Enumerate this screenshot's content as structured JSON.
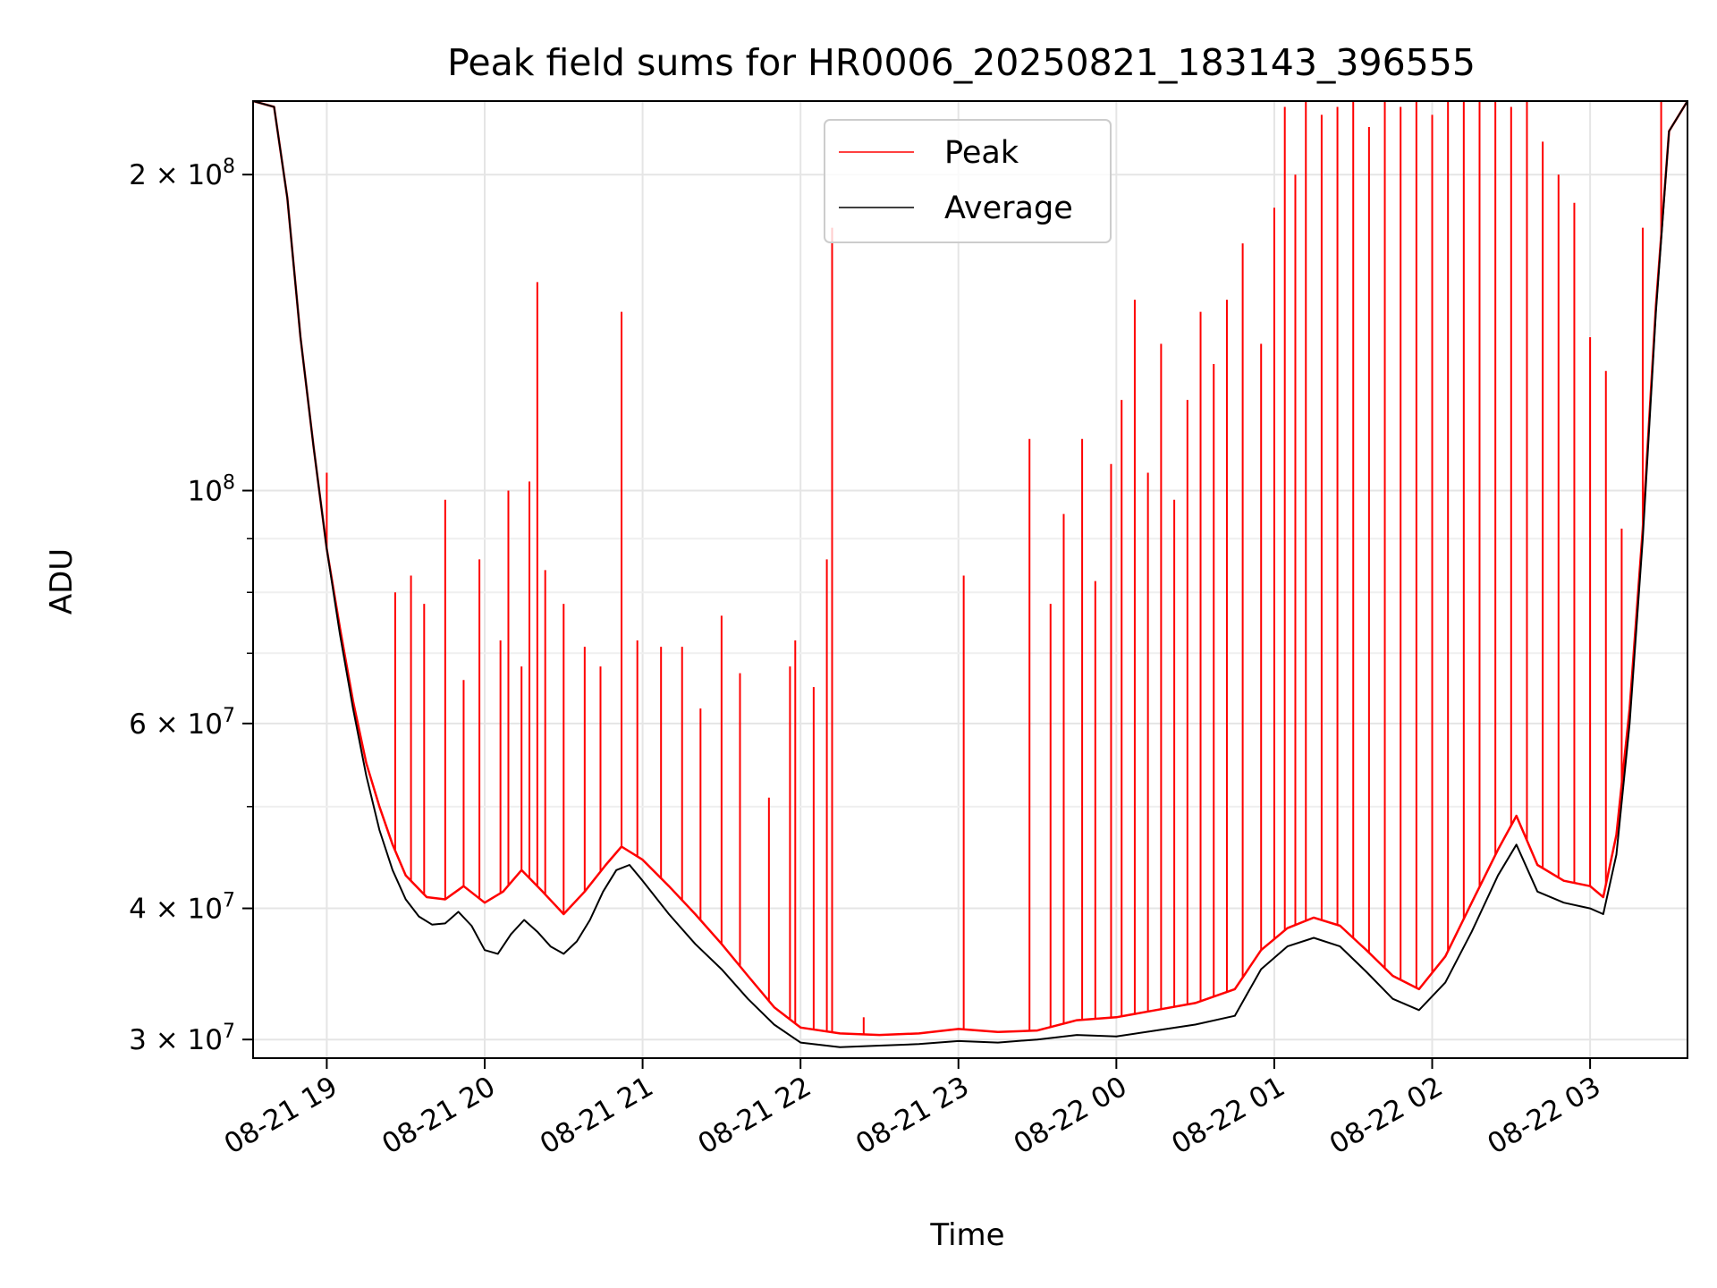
{
  "chart_data": {
    "type": "line",
    "title": "Peak field sums for HR0006_20250821_183143_396555",
    "xlabel": "Time",
    "ylabel": "ADU",
    "y_scale": "log",
    "ylim": [
      28800000,
      235000000
    ],
    "xlim": [
      "2025-08-21 18:32",
      "2025-08-22 03:37"
    ],
    "grid": true,
    "legend_position": "top-center",
    "x_ticks": [
      {
        "value": "2025-08-21 19:00",
        "label": "08-21 19"
      },
      {
        "value": "2025-08-21 20:00",
        "label": "08-21 20"
      },
      {
        "value": "2025-08-21 21:00",
        "label": "08-21 21"
      },
      {
        "value": "2025-08-21 22:00",
        "label": "08-21 22"
      },
      {
        "value": "2025-08-21 23:00",
        "label": "08-21 23"
      },
      {
        "value": "2025-08-22 00:00",
        "label": "08-22 00"
      },
      {
        "value": "2025-08-22 01:00",
        "label": "08-22 01"
      },
      {
        "value": "2025-08-22 02:00",
        "label": "08-22 02"
      },
      {
        "value": "2025-08-22 03:00",
        "label": "08-22 03"
      }
    ],
    "y_major_ticks": [
      {
        "value": 30000000,
        "mantissa": "3",
        "exponent": "7"
      },
      {
        "value": 40000000,
        "mantissa": "4",
        "exponent": "7"
      },
      {
        "value": 60000000,
        "mantissa": "6",
        "exponent": "7"
      },
      {
        "value": 100000000,
        "mantissa": "",
        "exponent": "8"
      },
      {
        "value": 200000000,
        "mantissa": "2",
        "exponent": "8"
      }
    ],
    "y_minor_ticks": [
      50000000,
      70000000,
      80000000,
      90000000
    ],
    "series": [
      {
        "name": "Peak",
        "color": "#ff0000",
        "line_width": 1,
        "points": [
          [
            "2025-08-21 18:32",
            235000000
          ],
          [
            "2025-08-21 18:40",
            232000000
          ],
          [
            "2025-08-21 18:45",
            190000000
          ],
          [
            "2025-08-21 18:50",
            140000000
          ],
          [
            "2025-08-21 18:55",
            110000000
          ],
          [
            "2025-08-21 19:00",
            88000000
          ],
          [
            "2025-08-21 19:05",
            74000000
          ],
          [
            "2025-08-21 19:10",
            63000000
          ],
          [
            "2025-08-21 19:15",
            55000000
          ],
          [
            "2025-08-21 19:20",
            50000000
          ],
          [
            "2025-08-21 19:25",
            46000000
          ],
          [
            "2025-08-21 19:30",
            43000000
          ],
          [
            "2025-08-21 19:38",
            41000000
          ],
          [
            "2025-08-21 19:45",
            40800000
          ],
          [
            "2025-08-21 19:52",
            42000000
          ],
          [
            "2025-08-21 20:00",
            40500000
          ],
          [
            "2025-08-21 20:07",
            41500000
          ],
          [
            "2025-08-21 20:14",
            43500000
          ],
          [
            "2025-08-21 20:22",
            41500000
          ],
          [
            "2025-08-21 20:30",
            39500000
          ],
          [
            "2025-08-21 20:38",
            41500000
          ],
          [
            "2025-08-21 20:46",
            44000000
          ],
          [
            "2025-08-21 20:52",
            45800000
          ],
          [
            "2025-08-21 21:00",
            44500000
          ],
          [
            "2025-08-21 21:10",
            42000000
          ],
          [
            "2025-08-21 21:20",
            39500000
          ],
          [
            "2025-08-21 21:30",
            37000000
          ],
          [
            "2025-08-21 21:40",
            34500000
          ],
          [
            "2025-08-21 21:50",
            32200000
          ],
          [
            "2025-08-21 22:00",
            30800000
          ],
          [
            "2025-08-21 22:15",
            30400000
          ],
          [
            "2025-08-21 22:30",
            30300000
          ],
          [
            "2025-08-21 22:45",
            30400000
          ],
          [
            "2025-08-21 23:00",
            30700000
          ],
          [
            "2025-08-21 23:15",
            30500000
          ],
          [
            "2025-08-21 23:30",
            30600000
          ],
          [
            "2025-08-21 23:45",
            31300000
          ],
          [
            "2025-08-22 00:00",
            31500000
          ],
          [
            "2025-08-22 00:15",
            32000000
          ],
          [
            "2025-08-22 00:30",
            32500000
          ],
          [
            "2025-08-22 00:45",
            33500000
          ],
          [
            "2025-08-22 00:55",
            36500000
          ],
          [
            "2025-08-22 01:05",
            38300000
          ],
          [
            "2025-08-22 01:15",
            39200000
          ],
          [
            "2025-08-22 01:25",
            38500000
          ],
          [
            "2025-08-22 01:35",
            36500000
          ],
          [
            "2025-08-22 01:45",
            34500000
          ],
          [
            "2025-08-22 01:55",
            33500000
          ],
          [
            "2025-08-22 02:05",
            36000000
          ],
          [
            "2025-08-22 02:15",
            40500000
          ],
          [
            "2025-08-22 02:25",
            45500000
          ],
          [
            "2025-08-22 02:32",
            49000000
          ],
          [
            "2025-08-22 02:40",
            44000000
          ],
          [
            "2025-08-22 02:50",
            42500000
          ],
          [
            "2025-08-22 03:00",
            42000000
          ],
          [
            "2025-08-22 03:05",
            41000000
          ],
          [
            "2025-08-22 03:10",
            47000000
          ],
          [
            "2025-08-22 03:15",
            62000000
          ],
          [
            "2025-08-22 03:20",
            92000000
          ],
          [
            "2025-08-22 03:25",
            150000000
          ],
          [
            "2025-08-22 03:30",
            220000000
          ],
          [
            "2025-08-22 03:37",
            235000000
          ]
        ],
        "spikes": [
          [
            "2025-08-21 19:00",
            104000000
          ],
          [
            "2025-08-21 19:26",
            80000000
          ],
          [
            "2025-08-21 19:32",
            83000000
          ],
          [
            "2025-08-21 19:37",
            78000000
          ],
          [
            "2025-08-21 19:45",
            98000000
          ],
          [
            "2025-08-21 19:52",
            66000000
          ],
          [
            "2025-08-21 19:58",
            86000000
          ],
          [
            "2025-08-21 20:06",
            72000000
          ],
          [
            "2025-08-21 20:09",
            100000000
          ],
          [
            "2025-08-21 20:14",
            68000000
          ],
          [
            "2025-08-21 20:17",
            102000000
          ],
          [
            "2025-08-21 20:20",
            158000000
          ],
          [
            "2025-08-21 20:23",
            84000000
          ],
          [
            "2025-08-21 20:30",
            78000000
          ],
          [
            "2025-08-21 20:38",
            71000000
          ],
          [
            "2025-08-21 20:44",
            68000000
          ],
          [
            "2025-08-21 20:52",
            148000000
          ],
          [
            "2025-08-21 20:58",
            72000000
          ],
          [
            "2025-08-21 21:07",
            71000000
          ],
          [
            "2025-08-21 21:15",
            71000000
          ],
          [
            "2025-08-21 21:22",
            62000000
          ],
          [
            "2025-08-21 21:30",
            76000000
          ],
          [
            "2025-08-21 21:37",
            67000000
          ],
          [
            "2025-08-21 21:48",
            51000000
          ],
          [
            "2025-08-21 21:56",
            68000000
          ],
          [
            "2025-08-21 21:58",
            72000000
          ],
          [
            "2025-08-21 22:05",
            65000000
          ],
          [
            "2025-08-21 22:10",
            86000000
          ],
          [
            "2025-08-21 22:12",
            178000000
          ],
          [
            "2025-08-21 22:24",
            31500000
          ],
          [
            "2025-08-21 23:02",
            83000000
          ],
          [
            "2025-08-21 23:27",
            112000000
          ],
          [
            "2025-08-21 23:35",
            78000000
          ],
          [
            "2025-08-21 23:40",
            95000000
          ],
          [
            "2025-08-21 23:47",
            112000000
          ],
          [
            "2025-08-21 23:52",
            82000000
          ],
          [
            "2025-08-21 23:58",
            106000000
          ],
          [
            "2025-08-22 00:02",
            122000000
          ],
          [
            "2025-08-22 00:07",
            152000000
          ],
          [
            "2025-08-22 00:12",
            104000000
          ],
          [
            "2025-08-22 00:17",
            138000000
          ],
          [
            "2025-08-22 00:22",
            98000000
          ],
          [
            "2025-08-22 00:27",
            122000000
          ],
          [
            "2025-08-22 00:32",
            148000000
          ],
          [
            "2025-08-22 00:37",
            132000000
          ],
          [
            "2025-08-22 00:42",
            152000000
          ],
          [
            "2025-08-22 00:48",
            172000000
          ],
          [
            "2025-08-22 00:55",
            138000000
          ],
          [
            "2025-08-22 01:00",
            186000000
          ],
          [
            "2025-08-22 01:04",
            232000000
          ],
          [
            "2025-08-22 01:08",
            200000000
          ],
          [
            "2025-08-22 01:12",
            235000000
          ],
          [
            "2025-08-22 01:18",
            228000000
          ],
          [
            "2025-08-22 01:24",
            232000000
          ],
          [
            "2025-08-22 01:30",
            235000000
          ],
          [
            "2025-08-22 01:36",
            222000000
          ],
          [
            "2025-08-22 01:42",
            235000000
          ],
          [
            "2025-08-22 01:48",
            232000000
          ],
          [
            "2025-08-22 01:54",
            235000000
          ],
          [
            "2025-08-22 02:00",
            228000000
          ],
          [
            "2025-08-22 02:06",
            235000000
          ],
          [
            "2025-08-22 02:12",
            235000000
          ],
          [
            "2025-08-22 02:18",
            235000000
          ],
          [
            "2025-08-22 02:24",
            235000000
          ],
          [
            "2025-08-22 02:30",
            232000000
          ],
          [
            "2025-08-22 02:36",
            235000000
          ],
          [
            "2025-08-22 02:42",
            215000000
          ],
          [
            "2025-08-22 02:48",
            200000000
          ],
          [
            "2025-08-22 02:54",
            188000000
          ],
          [
            "2025-08-22 03:00",
            140000000
          ],
          [
            "2025-08-22 03:06",
            130000000
          ],
          [
            "2025-08-22 03:12",
            92000000
          ],
          [
            "2025-08-22 03:20",
            178000000
          ],
          [
            "2025-08-22 03:27",
            235000000
          ]
        ]
      },
      {
        "name": "Average",
        "color": "#000000",
        "line_width": 1,
        "points": [
          [
            "2025-08-21 18:32",
            235000000
          ],
          [
            "2025-08-21 18:40",
            232000000
          ],
          [
            "2025-08-21 18:45",
            190000000
          ],
          [
            "2025-08-21 18:50",
            140000000
          ],
          [
            "2025-08-21 18:55",
            110000000
          ],
          [
            "2025-08-21 19:00",
            88000000
          ],
          [
            "2025-08-21 19:05",
            73000000
          ],
          [
            "2025-08-21 19:10",
            62000000
          ],
          [
            "2025-08-21 19:15",
            53500000
          ],
          [
            "2025-08-21 19:20",
            47500000
          ],
          [
            "2025-08-21 19:25",
            43500000
          ],
          [
            "2025-08-21 19:30",
            40800000
          ],
          [
            "2025-08-21 19:35",
            39300000
          ],
          [
            "2025-08-21 19:40",
            38600000
          ],
          [
            "2025-08-21 19:45",
            38700000
          ],
          [
            "2025-08-21 19:50",
            39700000
          ],
          [
            "2025-08-21 19:55",
            38500000
          ],
          [
            "2025-08-21 20:00",
            36500000
          ],
          [
            "2025-08-21 20:05",
            36200000
          ],
          [
            "2025-08-21 20:10",
            37800000
          ],
          [
            "2025-08-21 20:15",
            39000000
          ],
          [
            "2025-08-21 20:20",
            38000000
          ],
          [
            "2025-08-21 20:25",
            36800000
          ],
          [
            "2025-08-21 20:30",
            36200000
          ],
          [
            "2025-08-21 20:35",
            37200000
          ],
          [
            "2025-08-21 20:40",
            39000000
          ],
          [
            "2025-08-21 20:45",
            41500000
          ],
          [
            "2025-08-21 20:50",
            43500000
          ],
          [
            "2025-08-21 20:55",
            44000000
          ],
          [
            "2025-08-21 21:00",
            42500000
          ],
          [
            "2025-08-21 21:10",
            39500000
          ],
          [
            "2025-08-21 21:20",
            37000000
          ],
          [
            "2025-08-21 21:30",
            35000000
          ],
          [
            "2025-08-21 21:40",
            32800000
          ],
          [
            "2025-08-21 21:50",
            31000000
          ],
          [
            "2025-08-21 22:00",
            29800000
          ],
          [
            "2025-08-21 22:15",
            29500000
          ],
          [
            "2025-08-21 22:30",
            29600000
          ],
          [
            "2025-08-21 22:45",
            29700000
          ],
          [
            "2025-08-21 23:00",
            29900000
          ],
          [
            "2025-08-21 23:15",
            29800000
          ],
          [
            "2025-08-21 23:30",
            30000000
          ],
          [
            "2025-08-21 23:45",
            30300000
          ],
          [
            "2025-08-22 00:00",
            30200000
          ],
          [
            "2025-08-22 00:15",
            30600000
          ],
          [
            "2025-08-22 00:30",
            31000000
          ],
          [
            "2025-08-22 00:45",
            31600000
          ],
          [
            "2025-08-22 00:55",
            35000000
          ],
          [
            "2025-08-22 01:05",
            36800000
          ],
          [
            "2025-08-22 01:15",
            37500000
          ],
          [
            "2025-08-22 01:25",
            36800000
          ],
          [
            "2025-08-22 01:35",
            34800000
          ],
          [
            "2025-08-22 01:45",
            32800000
          ],
          [
            "2025-08-22 01:55",
            32000000
          ],
          [
            "2025-08-22 02:05",
            34000000
          ],
          [
            "2025-08-22 02:15",
            38000000
          ],
          [
            "2025-08-22 02:25",
            43000000
          ],
          [
            "2025-08-22 02:32",
            46000000
          ],
          [
            "2025-08-22 02:40",
            41500000
          ],
          [
            "2025-08-22 02:50",
            40500000
          ],
          [
            "2025-08-22 03:00",
            40000000
          ],
          [
            "2025-08-22 03:05",
            39500000
          ],
          [
            "2025-08-22 03:10",
            45000000
          ],
          [
            "2025-08-22 03:15",
            60000000
          ],
          [
            "2025-08-22 03:20",
            90000000
          ],
          [
            "2025-08-22 03:25",
            148000000
          ],
          [
            "2025-08-22 03:30",
            220000000
          ],
          [
            "2025-08-22 03:37",
            235000000
          ]
        ]
      }
    ]
  }
}
